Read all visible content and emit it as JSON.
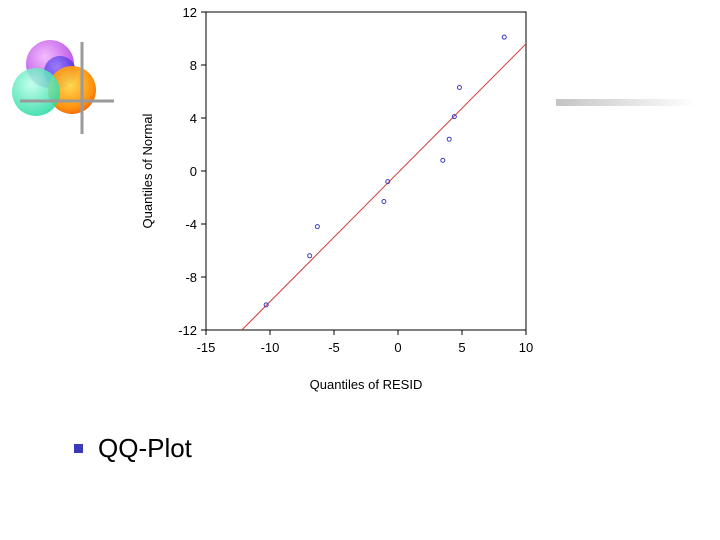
{
  "slide": {
    "bullet_text": "QQ-Plot",
    "bullet_color": "#3a3ab8"
  },
  "decoration": {
    "logo_icon": "overlapping-circles-logo-icon",
    "logo_colors": [
      "#e36bf2",
      "#5a3ff0",
      "#ff8a00",
      "#ffd21a",
      "#3fe8b0"
    ],
    "bar_color": "#c8c8c8"
  },
  "chart_data": {
    "type": "scatter",
    "xlabel": "Quantiles of RESID",
    "ylabel": "Quantiles of Normal",
    "xlim": [
      -15,
      10
    ],
    "ylim": [
      -12,
      12
    ],
    "xticks": [
      -15,
      -10,
      -5,
      0,
      5,
      10
    ],
    "yticks": [
      -12,
      -8,
      -4,
      0,
      4,
      8,
      12
    ],
    "grid": false,
    "points": [
      {
        "x": -10.3,
        "y": -10.1
      },
      {
        "x": -6.9,
        "y": -6.4
      },
      {
        "x": -6.3,
        "y": -4.2
      },
      {
        "x": -1.1,
        "y": -2.3
      },
      {
        "x": -0.8,
        "y": -0.8
      },
      {
        "x": 3.5,
        "y": 0.8
      },
      {
        "x": 4.0,
        "y": 2.4
      },
      {
        "x": 4.4,
        "y": 4.1
      },
      {
        "x": 4.8,
        "y": 6.3
      },
      {
        "x": 8.3,
        "y": 10.1
      }
    ],
    "reference_line": {
      "x1": -12.2,
      "y1": -12,
      "x2": 10,
      "y2": 9.6
    },
    "point_color": "#3c3cc8",
    "line_color": "#d03a3a"
  }
}
